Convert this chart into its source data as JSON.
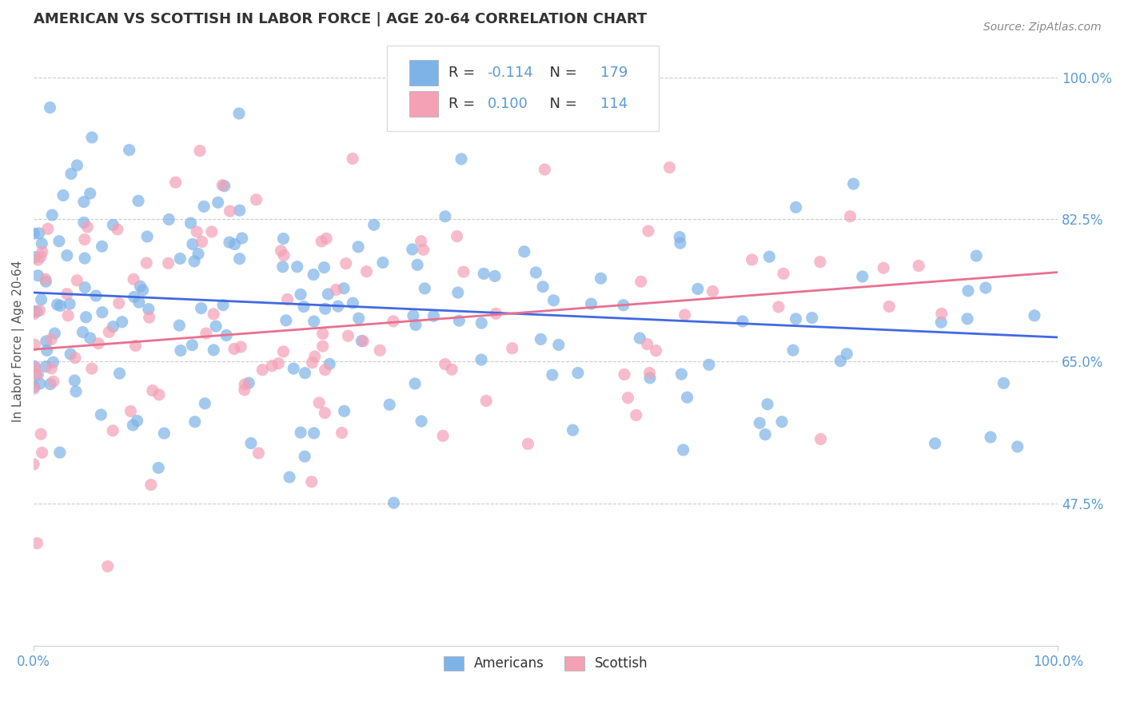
{
  "title": "AMERICAN VS SCOTTISH IN LABOR FORCE | AGE 20-64 CORRELATION CHART",
  "source_text": "Source: ZipAtlas.com",
  "ylabel": "In Labor Force | Age 20-64",
  "xlim": [
    0.0,
    1.0
  ],
  "ylim": [
    0.3,
    1.05
  ],
  "yticks": [
    0.475,
    0.65,
    0.825,
    1.0
  ],
  "ytick_labels": [
    "47.5%",
    "65.0%",
    "82.5%",
    "100.0%"
  ],
  "xticks": [
    0.0,
    1.0
  ],
  "xtick_labels": [
    "0.0%",
    "100.0%"
  ],
  "blue_color": "#7EB3E8",
  "pink_color": "#F4A0B5",
  "blue_line_color": "#4169E1",
  "pink_line_color": "#E87090",
  "grid_color": "#CCCCCC",
  "tick_label_color": "#5B9BD5",
  "legend_R_color": "#5B9BD5",
  "blue_R": -0.114,
  "blue_N": 179,
  "pink_R": 0.1,
  "pink_N": 114,
  "blue_intercept": 0.735,
  "blue_slope": -0.055,
  "pink_intercept": 0.665,
  "pink_slope": 0.095,
  "random_seed_blue": 42,
  "random_seed_pink": 99,
  "scatter_alpha": 0.7,
  "scatter_size": 120,
  "figsize": [
    14.06,
    8.92
  ],
  "dpi": 100
}
